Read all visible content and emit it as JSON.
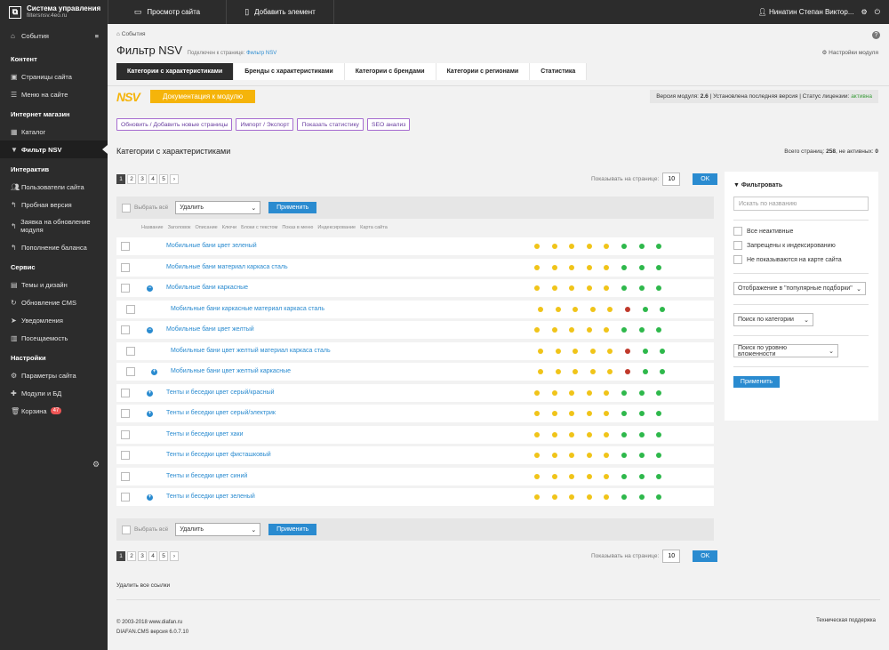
{
  "brand": {
    "title": "Система управления",
    "domain": "filtersnsv.4eo.ru"
  },
  "topbar": {
    "view_site": "Просмотр сайта",
    "add_element": "Добавить элемент",
    "user": "Нинатин Степан Виктор..."
  },
  "sidebar": {
    "events": "События",
    "sections": [
      {
        "title": "Контент",
        "items": [
          "Страницы сайта",
          "Меню на сайте"
        ]
      },
      {
        "title": "Интернет магазин",
        "items": [
          "Каталог",
          "Фильтр NSV"
        ]
      },
      {
        "title": "Интерактив",
        "items": [
          "Пользователи сайта",
          "Пробная версия",
          "Заявка на обновление модуля",
          "Пополнение баланса"
        ]
      },
      {
        "title": "Сервис",
        "items": [
          "Темы и дизайн",
          "Обновление CMS",
          "Уведомления",
          "Посещаемость"
        ]
      },
      {
        "title": "Настройки",
        "items": [
          "Параметры сайта",
          "Модули и БД",
          "Корзина"
        ]
      }
    ],
    "trash_badge": "47"
  },
  "main": {
    "breadcrumb": "События",
    "title": "Фильтр NSV",
    "subtitle_prefix": "Подключен к странице:",
    "subtitle_link": "Фильтр NSV",
    "settings_link": "Настройки модуля",
    "tabs": [
      "Категории с характеристиками",
      "Бренды с характеристиками",
      "Категории с брендами",
      "Категории с регионами",
      "Статистика"
    ],
    "nsv_logo": "NSV",
    "doc_button": "Документация к модулю",
    "version": {
      "label": "Версия модуля:",
      "value": "2.6",
      "installed": "| Установлена последняя версия | Статус лицензии:",
      "status": "активна"
    },
    "actions": [
      "Обновить / Добавить новые страницы",
      "Импорт / Экспорт",
      "Показать статистику",
      "SEO анализ"
    ],
    "section_title": "Категории с характеристиками",
    "total_label": "Всего страниц:",
    "total_value": "258",
    "inactive_label": ", не активных:",
    "inactive_value": "0",
    "pages": [
      "1",
      "2",
      "3",
      "4",
      "5",
      "›"
    ],
    "per_page_label": "Показывать на странице:",
    "per_page_value": "10",
    "ok": "OK",
    "select_all": "Выбрать всё",
    "bulk_action": "Удалить",
    "apply": "Применить",
    "columns": [
      "Название",
      "Заголовок",
      "Описание",
      "Ключи",
      "Блоки с текстом",
      "Показ в меню",
      "Индексирование",
      "Карта сайта"
    ],
    "rows": [
      {
        "name": "Мобильные бани цвет зеленый",
        "level": 0,
        "toggle": "",
        "dots": [
          "y",
          "y",
          "y",
          "y",
          "y",
          "g",
          "g",
          "g"
        ]
      },
      {
        "name": "Мобильные бани материал каркаса сталь",
        "level": 0,
        "toggle": "",
        "dots": [
          "y",
          "y",
          "y",
          "y",
          "y",
          "g",
          "g",
          "g"
        ]
      },
      {
        "name": "Мобильные бани каркасные",
        "level": 0,
        "toggle": "−",
        "dots": [
          "y",
          "y",
          "y",
          "y",
          "y",
          "g",
          "g",
          "g"
        ]
      },
      {
        "name": "Мобильные бани каркасные материал каркаса сталь",
        "level": 1,
        "toggle": "",
        "dots": [
          "y",
          "y",
          "y",
          "y",
          "y",
          "r",
          "g",
          "g"
        ]
      },
      {
        "name": "Мобильные бани цвет желтый",
        "level": 0,
        "toggle": "−",
        "dots": [
          "y",
          "y",
          "y",
          "y",
          "y",
          "g",
          "g",
          "g"
        ]
      },
      {
        "name": "Мобильные бани цвет желтый материал каркаса сталь",
        "level": 1,
        "toggle": "",
        "dots": [
          "y",
          "y",
          "y",
          "y",
          "y",
          "r",
          "g",
          "g"
        ]
      },
      {
        "name": "Мобильные бани цвет желтый каркасные",
        "level": 1,
        "toggle": "+",
        "dots": [
          "y",
          "y",
          "y",
          "y",
          "y",
          "r",
          "g",
          "g"
        ]
      },
      {
        "name": "Тенты и беседки цвет серый/красный",
        "level": 0,
        "toggle": "+",
        "dots": [
          "y",
          "y",
          "y",
          "y",
          "y",
          "g",
          "g",
          "g"
        ]
      },
      {
        "name": "Тенты и беседки цвет серый/электрик",
        "level": 0,
        "toggle": "+",
        "dots": [
          "y",
          "y",
          "y",
          "y",
          "y",
          "g",
          "g",
          "g"
        ]
      },
      {
        "name": "Тенты и беседки цвет хаки",
        "level": 0,
        "toggle": "",
        "dots": [
          "y",
          "y",
          "y",
          "y",
          "y",
          "g",
          "g",
          "g"
        ]
      },
      {
        "name": "Тенты и беседки цвет фисташковый",
        "level": 0,
        "toggle": "",
        "dots": [
          "y",
          "y",
          "y",
          "y",
          "y",
          "g",
          "g",
          "g"
        ]
      },
      {
        "name": "Тенты и беседки цвет синий",
        "level": 0,
        "toggle": "",
        "dots": [
          "y",
          "y",
          "y",
          "y",
          "y",
          "g",
          "g",
          "g"
        ]
      },
      {
        "name": "Тенты и беседки цвет зеленый",
        "level": 0,
        "toggle": "+",
        "dots": [
          "y",
          "y",
          "y",
          "y",
          "y",
          "g",
          "g",
          "g"
        ]
      }
    ],
    "delete_all_links": "Удалить все ссылки",
    "copyright": "© 2003-2018 www.diafan.ru",
    "cms_version": "DIAFAN.CMS версия 6.0.7.10",
    "support": "Техническая поддержка"
  },
  "filter": {
    "title": "Фильтровать",
    "search_placeholder": "Искать по названию",
    "checks": [
      "Все неактивные",
      "Запрещены к индексированию",
      "Не показываются на карте сайта"
    ],
    "popular": "Отображение в \"популярные подборки\"",
    "category": "Поиск по категории",
    "nesting": "Поиск по уровню вложенности",
    "apply": "Применить"
  },
  "colors": {
    "y": "#f0c419",
    "g": "#2eb84b",
    "r": "#c0392b",
    "accent": "#2a8bd0"
  }
}
